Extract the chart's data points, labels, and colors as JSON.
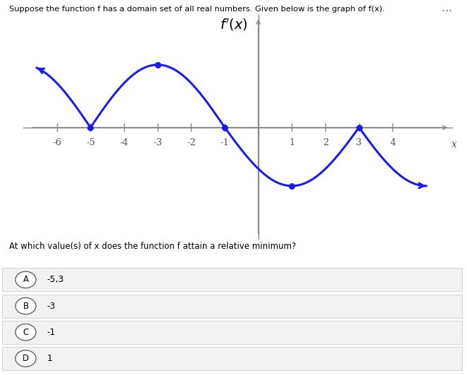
{
  "title": "$f'(x)$",
  "xlabel": "x",
  "curve_color": "#1a1aee",
  "background_color": "#ffffff",
  "dot_color": "#1a1aee",
  "dot_points": [
    [
      -3,
      1.45
    ],
    [
      1,
      -1.35
    ]
  ],
  "xlim": [
    -7.0,
    5.8
  ],
  "ylim": [
    -2.6,
    2.6
  ],
  "xticks": [
    -6,
    -5,
    -4,
    -3,
    -2,
    -1,
    1,
    2,
    3,
    4
  ],
  "header_text": "Suppose the function f has a domain set of all real numbers. Given below is the graph of f(x).",
  "question_text": "At which value(s) of x does the function f attain a relative minimum?",
  "choices": [
    "-5,3",
    "-3",
    "-1",
    "1"
  ],
  "choice_letters": [
    "A",
    "B",
    "C",
    "D"
  ]
}
